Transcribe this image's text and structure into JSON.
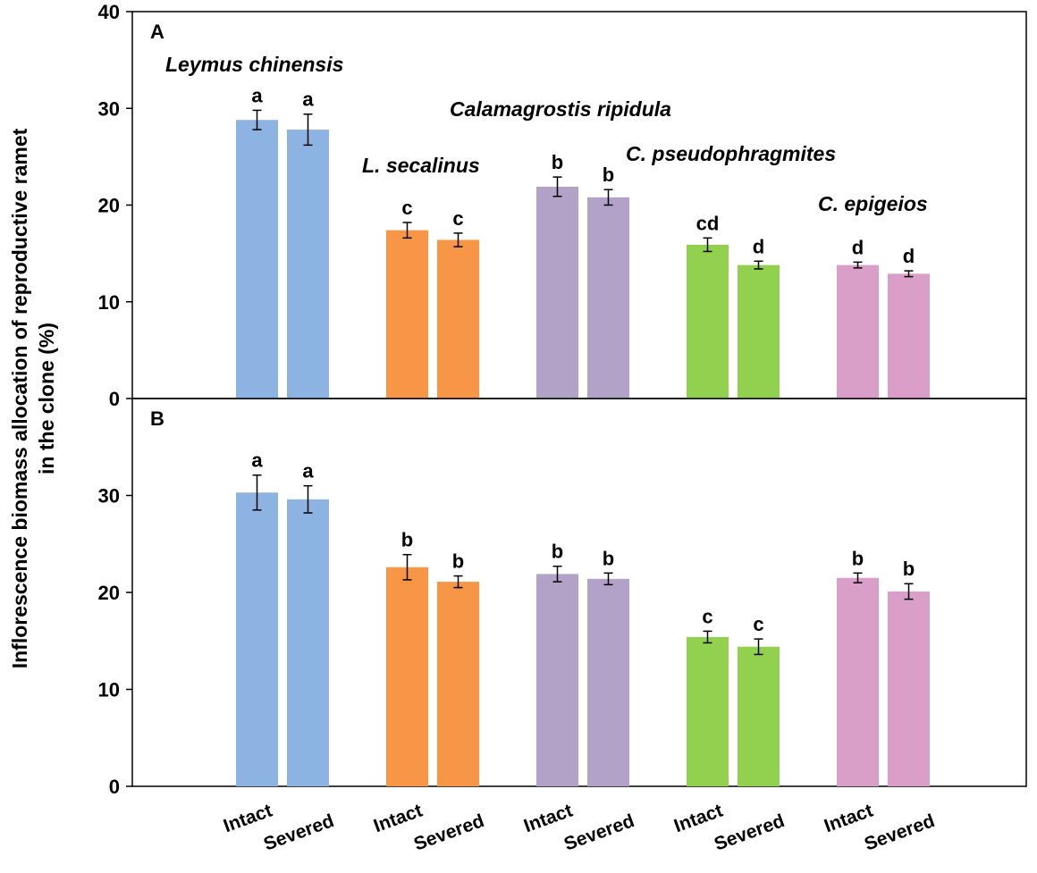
{
  "chart_data": {
    "type": "bar",
    "ylabel": [
      "Inflorescence biomass allocation of reproductive ramet",
      "in the clone (%)"
    ],
    "categories": [
      "Intact",
      "Severed"
    ],
    "group_colors": [
      "#8db3e2",
      "#f79646",
      "#b3a2c7",
      "#92d050",
      "#d99fc8"
    ],
    "panels": [
      {
        "label": "A",
        "ylim": [
          0,
          40
        ],
        "ticks": [
          0,
          10,
          20,
          30,
          40
        ],
        "groups": [
          {
            "species": "Leymus chinensis",
            "values": [
              28.8,
              27.8
            ],
            "errors": [
              1.0,
              1.6
            ],
            "letters": [
              "a",
              "a"
            ]
          },
          {
            "species": "L. secalinus",
            "values": [
              17.4,
              16.4
            ],
            "errors": [
              0.8,
              0.7
            ],
            "letters": [
              "c",
              "c"
            ]
          },
          {
            "species": "Calamagrostis ripidula",
            "values": [
              21.9,
              20.8
            ],
            "errors": [
              1.0,
              0.8
            ],
            "letters": [
              "b",
              "b"
            ]
          },
          {
            "species": "C. pseudophragmites",
            "values": [
              15.9,
              13.8
            ],
            "errors": [
              0.7,
              0.4
            ],
            "letters": [
              "cd",
              "d"
            ]
          },
          {
            "species": "C. epigeios",
            "values": [
              13.8,
              12.9
            ],
            "errors": [
              0.3,
              0.3
            ],
            "letters": [
              "d",
              "d"
            ]
          }
        ]
      },
      {
        "label": "B",
        "ylim": [
          0,
          40
        ],
        "ticks": [
          0,
          10,
          20,
          30
        ],
        "groups": [
          {
            "species": "Leymus chinensis",
            "values": [
              30.3,
              29.6
            ],
            "errors": [
              1.8,
              1.4
            ],
            "letters": [
              "a",
              "a"
            ]
          },
          {
            "species": "L. secalinus",
            "values": [
              22.6,
              21.1
            ],
            "errors": [
              1.3,
              0.6
            ],
            "letters": [
              "b",
              "b"
            ]
          },
          {
            "species": "Calamagrostis ripidula",
            "values": [
              21.9,
              21.4
            ],
            "errors": [
              0.8,
              0.6
            ],
            "letters": [
              "b",
              "b"
            ]
          },
          {
            "species": "C. pseudophragmites",
            "values": [
              15.4,
              14.4
            ],
            "errors": [
              0.6,
              0.8
            ],
            "letters": [
              "c",
              "c"
            ]
          },
          {
            "species": "C. epigeios",
            "values": [
              21.5,
              20.1
            ],
            "errors": [
              0.5,
              0.8
            ],
            "letters": [
              "b",
              "b"
            ]
          }
        ]
      }
    ]
  }
}
